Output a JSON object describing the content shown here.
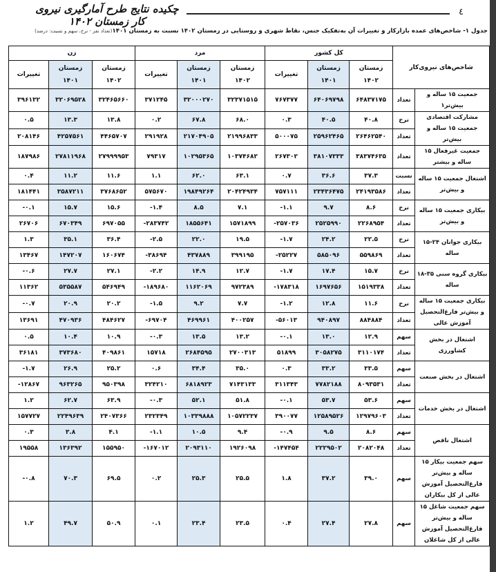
{
  "page": {
    "number": "٤",
    "title": "چکیده نتایج طرح آمارگیری نیروی کار زمستان ۱۴۰۲",
    "caption": "جدول ۱- شاخص‌های عمده  بازارکار و تغییرات آن به‌تفکیک جنس، نقاط شهری و روستایی در زمستان ۱۴۰۲ نسبت به زمستان ۱۴۰۱",
    "caption_note": "(تعداد نفر - نرخ، سهم و نسبت: درصد)"
  },
  "table": {
    "indicator_header": "شاخص‌های نیروی‌کار",
    "groups": [
      "کل کشور",
      "مرد",
      "زن"
    ],
    "subheaders": {
      "winter": "زمستان",
      "y1402": "۱۴۰۲",
      "y1401": "۱۴۰۱",
      "change": "تغییرات"
    },
    "highlight_color": "#dce9f5",
    "rows": [
      {
        "label": "جمعیت ۱۵ ساله و بیش‌تر۱",
        "subs": [
          {
            "unit": "تعداد",
            "values": [
              "۶۴۸۳۷۱۷۵",
              "۶۴۰۶۹۷۹۸",
              "۷۶۷۳۷۷",
              "۳۲۳۷۱۵۱۵",
              "۳۲۰۰۰۲۷۰",
              "۳۷۱۲۴۵",
              "۳۲۴۶۵۶۶۰",
              "۳۲۰۶۹۵۲۸",
              "۳۹۶۱۳۲"
            ]
          }
        ]
      },
      {
        "label": "مشارکت اقتصادی جمعیت ۱۵ ساله و بیش‌تر",
        "subs": [
          {
            "unit": "نرخ",
            "values": [
              "۴۰.۸",
              "۴۰.۵",
              "۰.۳",
              "۶۸.۰",
              "۶۷.۸",
              "۰.۲",
              "۱۳.۸",
              "۱۳.۳",
              "۰.۵"
            ]
          },
          {
            "unit": "تعداد",
            "values": [
              "۲۶۴۶۲۵۴۰",
              "۲۵۹۶۲۴۶۵",
              "۵۰۰۰۷۵",
              "۲۱۹۹۶۸۳۳",
              "۲۱۷۰۴۹۰۵",
              "۲۹۱۹۲۸",
              "۴۴۶۵۷۰۷",
              "۴۲۵۷۵۶۱",
              "۲۰۸۱۴۶"
            ]
          }
        ]
      },
      {
        "label": "جمعیت غیرفعال ۱۵ ساله و بیشتر",
        "subs": [
          {
            "unit": "تعداد",
            "values": [
              "۳۸۳۷۴۶۳۵",
              "۳۸۱۰۷۳۳۳",
              "۲۶۷۳۰۲",
              "۱۰۳۷۴۶۸۲",
              "۱۰۲۹۵۳۶۵",
              "۷۹۳۱۷",
              "۲۷۹۹۹۹۵۳",
              "۲۷۸۱۱۹۶۸",
              "۱۸۷۹۸۶"
            ]
          }
        ]
      },
      {
        "label": "اشتغال جمعیت ۱۵ ساله و بیش‌تر",
        "subs": [
          {
            "unit": "نسبت",
            "values": [
              "۳۷.۳",
              "۳۶.۶",
              "۰.۷",
              "۶۳.۱",
              "۶۲.۰",
              "۱.۱",
              "۱۱.۶",
              "۱۱.۲",
              "۰.۴"
            ]
          },
          {
            "unit": "تعداد",
            "values": [
              "۲۴۱۹۳۵۸۶",
              "۲۳۴۳۶۴۷۵",
              "۷۵۷۱۱۱",
              "۲۰۴۲۴۹۳۴",
              "۱۹۸۴۹۲۶۴",
              "۵۷۵۶۷۰",
              "۳۷۶۸۶۵۲",
              "۳۵۸۷۲۱۱",
              "۱۸۱۴۴۱"
            ]
          }
        ]
      },
      {
        "label": "بیکاری جمعیت ۱۵ ساله و بیش‌تر",
        "subs": [
          {
            "unit": "نرخ",
            "values": [
              "۸.۶",
              "۹.۷",
              "-۱.۱",
              "۷.۱",
              "۸.۵",
              "-۱.۴",
              "۱۵.۶",
              "۱۵.۷",
              "-۰.۱"
            ]
          },
          {
            "unit": "تعداد",
            "values": [
              "۲۲۶۸۹۵۴",
              "۲۵۲۵۹۹۰",
              "-۲۵۷۰۳۶",
              "۱۵۷۱۸۹۹",
              "۱۸۵۵۶۴۱",
              "-۲۸۳۷۴۲",
              "۶۹۷۰۵۵",
              "۶۷۰۳۴۹",
              "۲۶۷۰۶"
            ]
          }
        ]
      },
      {
        "label": "بیکاری جوانان ۲۴-۱۵ ساله",
        "subs": [
          {
            "unit": "نرخ",
            "values": [
              "۲۲.۵",
              "۲۴.۲",
              "-۱.۷",
              "۱۹.۵",
              "۲۲.۰",
              "-۲.۵",
              "۳۶.۴",
              "۳۵.۱",
              "۱.۳"
            ]
          },
          {
            "unit": "تعداد",
            "values": [
              "۵۵۹۸۶۹",
              "۵۸۵۰۹۶",
              "-۲۵۲۲۷",
              "۳۹۹۱۹۵",
              "۴۳۷۸۸۹",
              "-۳۸۶۹۴",
              "۱۶۰۶۷۴",
              "۱۴۷۲۰۷",
              "۱۳۴۶۷"
            ]
          }
        ]
      },
      {
        "label": "بیکاری گروه سنی ۳۵-۱۸ ساله",
        "subs": [
          {
            "unit": "نرخ",
            "values": [
              "۱۵.۷",
              "۱۷.۴",
              "-۱.۷",
              "۱۲.۷",
              "۱۴.۹",
              "-۲.۲",
              "۲۷.۱",
              "۲۷.۷",
              "-۰.۶"
            ]
          },
          {
            "unit": "تعداد",
            "values": [
              "۱۵۱۹۳۳۸",
              "۱۶۹۷۶۵۶",
              "-۱۷۸۳۱۸",
              "۹۷۲۳۸۹",
              "۱۱۶۲۰۶۹",
              "-۱۸۹۶۸۰",
              "۵۴۶۹۴۹",
              "۵۳۵۵۸۷",
              "۱۱۳۶۲"
            ]
          }
        ]
      },
      {
        "label": "بیکاری جمعیت ۱۵ ساله و بیش‌تر فارغ‌التحصیل آموزش عالی",
        "subs": [
          {
            "unit": "نرخ",
            "values": [
              "۱۱.۶",
              "۱۲.۸",
              "-۱.۲",
              "۷.۷",
              "۹.۲",
              "-۱.۵",
              "۲۰.۲",
              "۲۰.۹",
              "-۰.۷"
            ]
          },
          {
            "unit": "تعداد",
            "values": [
              "۸۸۴۸۸۴",
              "۹۴۰۸۹۷",
              "-۵۶۰۱۳",
              "۴۰۰۲۵۷",
              "۴۶۹۹۶۱",
              "-۶۹۷۰۴",
              "۴۸۴۶۲۷",
              "۴۷۰۹۳۶",
              "۱۳۶۹۱"
            ]
          }
        ]
      },
      {
        "label": "اشتغال در بخش کشاورزی",
        "subs": [
          {
            "unit": "سهم",
            "values": [
              "۱۲.۹",
              "۱۳.۰",
              "-۰.۱",
              "۱۳.۲",
              "۱۳.۵",
              "-۰.۳",
              "۱۰.۹",
              "۱۰.۴",
              "۰.۵"
            ]
          },
          {
            "unit": "تعداد",
            "values": [
              "۳۱۱۰۱۷۴",
              "۳۰۵۸۲۷۵",
              "۵۱۸۹۹",
              "۲۷۰۰۳۱۳",
              "۲۶۸۴۵۹۵",
              "۱۵۷۱۸",
              "۴۰۹۸۶۱",
              "۳۷۳۶۸۰",
              "۳۶۱۸۱"
            ]
          }
        ]
      },
      {
        "label": "اشتغال در بخش صنعت",
        "subs": [
          {
            "unit": "سهم",
            "values": [
              "۳۳.۵",
              "۳۳.۲",
              "۰.۳",
              "۳۵.۰",
              "۳۴.۴",
              "۰.۶",
              "۲۵.۲",
              "۲۶.۹",
              "-۱.۷"
            ]
          },
          {
            "unit": "تعداد",
            "values": [
              "۸۰۹۳۵۳۱",
              "۷۷۸۲۱۸۸",
              "۳۱۱۳۴۳",
              "۷۱۴۳۱۳۳",
              "۶۸۱۸۹۲۳",
              "۳۲۴۲۱۰",
              "۹۵۰۳۹۸",
              "۹۶۳۲۶۵",
              "-۱۲۸۶۷"
            ]
          }
        ]
      },
      {
        "label": "اشتغال در بخش خدمات",
        "subs": [
          {
            "unit": "سهم",
            "values": [
              "۵۳.۶",
              "۵۳.۷",
              "-۰.۱",
              "۵۱.۸",
              "۵۲.۱",
              "-۰.۳",
              "۶۳.۹",
              "۶۲.۷",
              "۱.۲"
            ]
          },
          {
            "unit": "تعداد",
            "values": [
              "۱۲۹۷۹۶۰۳",
              "۱۲۵۸۹۵۲۶",
              "۳۹۰۰۷۷",
              "۱۰۵۷۲۲۳۷",
              "۱۰۳۳۹۸۸۸",
              "۲۳۲۳۴۹",
              "۲۴۰۷۳۶۶",
              "۲۲۴۹۶۳۹",
              "۱۵۷۷۲۷"
            ]
          }
        ]
      },
      {
        "label": "اشتغال ناقص",
        "subs": [
          {
            "unit": "سهم",
            "values": [
              "۸.۶",
              "۹.۵",
              "-۰.۹",
              "۹.۴",
              "۱۰.۵",
              "-۱.۱",
              "۴.۱",
              "۳.۸",
              "۰.۳"
            ]
          },
          {
            "unit": "تعداد",
            "values": [
              "۲۰۸۲۰۴۸",
              "۲۲۲۹۵۰۲",
              "-۱۴۷۴۵۴",
              "۱۹۲۶۰۹۸",
              "۲۰۹۳۱۱۰",
              "-۱۶۷۰۱۲",
              "۱۵۵۹۵۰",
              "۱۳۶۳۹۲",
              "۱۹۵۵۸"
            ]
          }
        ]
      },
      {
        "label": "سهم جمعیت بیکار ۱۵ ساله و بیش‌تر فارغ‌التحصیل آموزش عالی از کل بیکاران",
        "tall": true,
        "subs": [
          {
            "unit": "سهم",
            "values": [
              "۳۹.۰",
              "۳۷.۲",
              "۱.۸",
              "۲۵.۵",
              "۲۵.۳",
              "۰.۲",
              "۶۹.۵",
              "۷۰.۳",
              "-۰.۸"
            ]
          }
        ]
      },
      {
        "label": "سهم جمعیت شاغل ۱۵ ساله و بیش‌تر فارغ‌التحصیل آموزش عالی از کل شاغلان",
        "tall": true,
        "subs": [
          {
            "unit": "سهم",
            "values": [
              "۲۷.۸",
              "۲۷.۴",
              "۰.۴",
              "۲۳.۵",
              "۲۳.۴",
              "۰.۱",
              "۵۰.۹",
              "۴۹.۷",
              "۱.۲"
            ]
          }
        ]
      }
    ]
  }
}
